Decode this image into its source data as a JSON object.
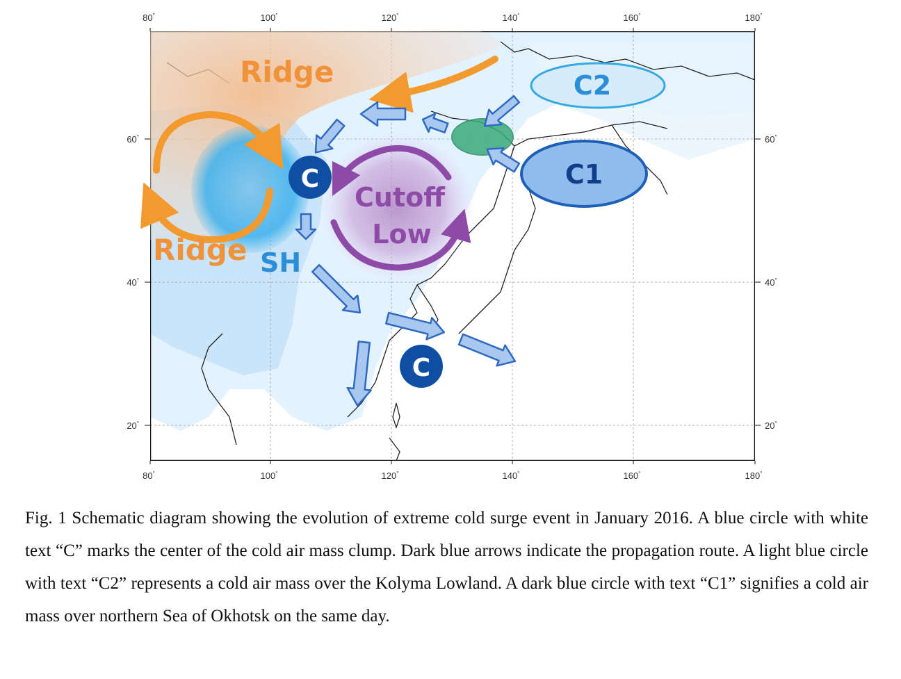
{
  "figure": {
    "axes": {
      "lon_ticks": [
        "80",
        "100",
        "120",
        "140",
        "160",
        "180"
      ],
      "lat_ticks": [
        "60",
        "40",
        "20"
      ],
      "degree_symbol": "°"
    },
    "labels": {
      "ridge_north": "Ridge",
      "ridge_west": "Ridge",
      "sh": "SH",
      "cutoff_line1": "Cutoff",
      "cutoff_line2": "Low",
      "c_center": "C",
      "c_south": "C",
      "c1": "C1",
      "c2": "C2"
    },
    "colors": {
      "ridge_fill": "#f5c9a3",
      "ridge_text": "#f0923a",
      "ridge_arrow": "#f39a2f",
      "sh_fill": "#5bbcf0",
      "sh_text": "#2a8fd8",
      "cutoff_purple": "#8d4aa6",
      "cold_center": "#0f4fa3",
      "route_arrow_fill": "#a9c8ef",
      "route_arrow_stroke": "#2e6ac2",
      "c1_fill": "#8fbcec",
      "c1_stroke": "#1e5fb8",
      "c2_fill": "#d6ecfa",
      "c2_stroke": "#36a9e0",
      "green_mass": "#3aab7a"
    }
  },
  "caption": {
    "text": "Fig. 1 Schematic diagram showing the evolution of extreme cold surge event in January 2016. A blue circle with white text “C” marks the center of the cold air mass clump. Dark blue arrows indicate the propagation route. A light blue circle with text “C2” represents a cold air mass over the Kolyma Lowland. A dark blue circle with text “C1” signifies a cold air mass over northern Sea of Okhotsk on the same day."
  }
}
